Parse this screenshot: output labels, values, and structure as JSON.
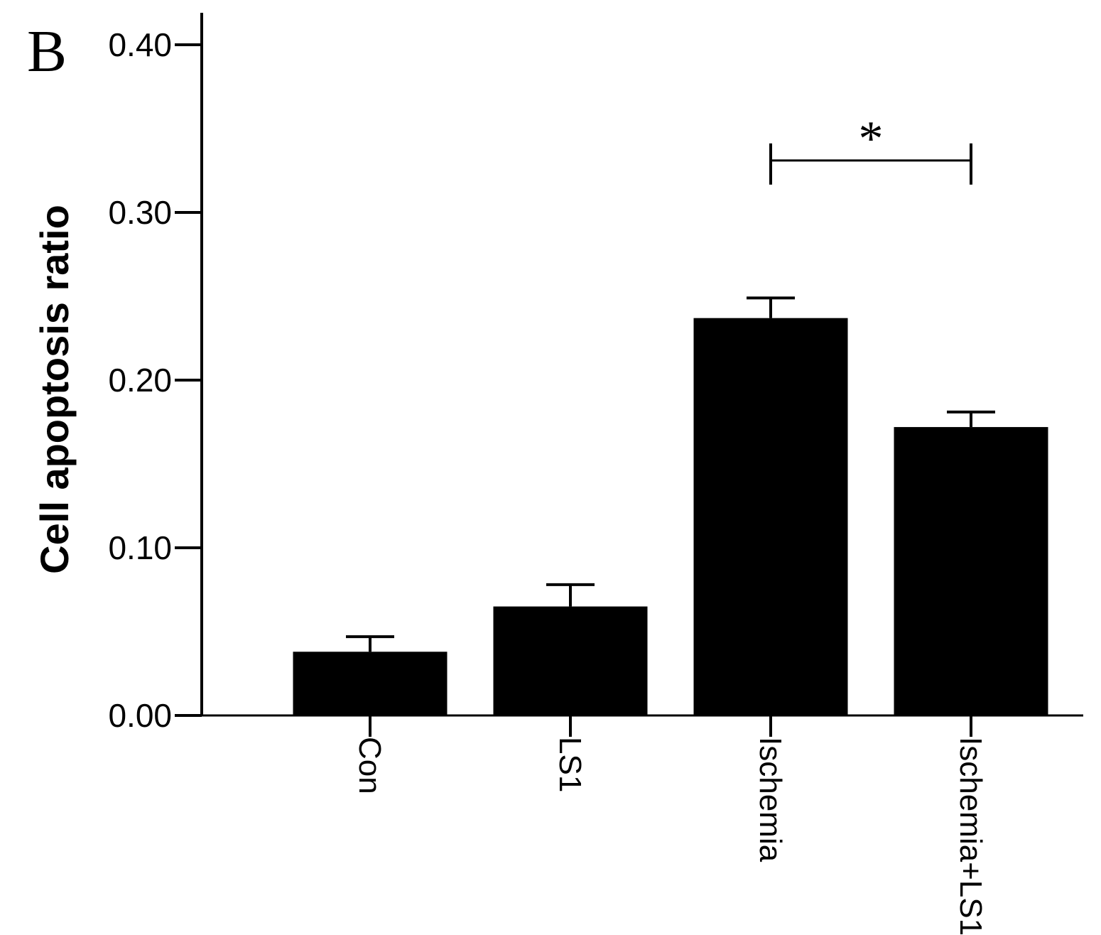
{
  "panel_label": "B",
  "chart_data": {
    "type": "bar",
    "ylabel": "Cell apoptosis ratio",
    "xlabel": "",
    "ylim": [
      0,
      0.42
    ],
    "yticks": [
      0.0,
      0.1,
      0.2,
      0.3,
      0.4
    ],
    "ytick_labels": [
      "0.00",
      "0.10",
      "0.20",
      "0.30",
      "0.40"
    ],
    "categories": [
      "Con",
      "LS1",
      "Ischemia",
      "Ischemia+LS1"
    ],
    "values": [
      0.038,
      0.065,
      0.237,
      0.172
    ],
    "errors": [
      0.009,
      0.013,
      0.012,
      0.009
    ],
    "bar_color": "#000000",
    "grid": false,
    "significance": [
      {
        "between": [
          "Ischemia",
          "Ischemia+LS1"
        ],
        "label": "*",
        "level": 0.331
      }
    ]
  }
}
